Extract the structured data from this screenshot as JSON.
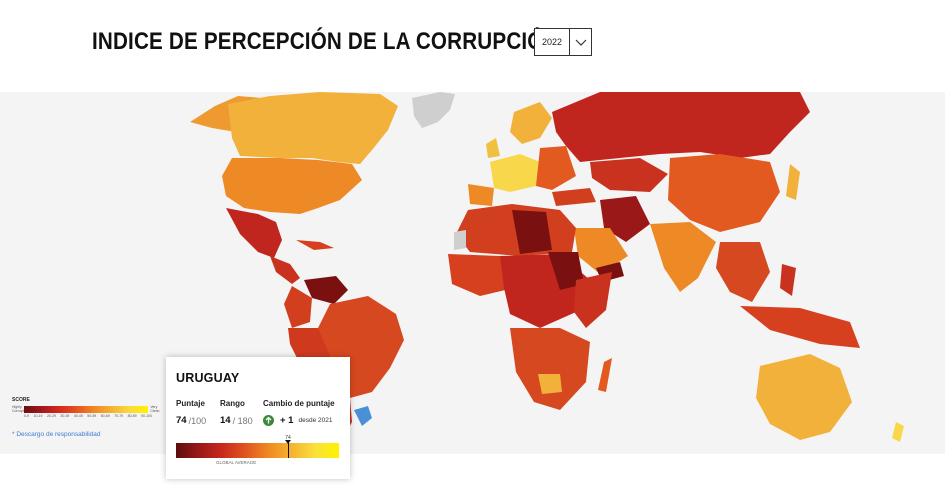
{
  "header": {
    "title": "INDICE DE PERCEPCIÓN DE LA CORRUPCIÓN",
    "year_selected": "2022"
  },
  "icons": {
    "year_dropdown": "chevron-down-icon",
    "change": "arrow-up-circle-icon"
  },
  "legend": {
    "title": "SCORE",
    "left_label_1": "Highly",
    "left_label_2": "Corrupt",
    "right_label_1": "Very",
    "right_label_2": "Clean",
    "ticks": [
      "0-9",
      "10-19",
      "20-29",
      "30-39",
      "40-49",
      "50-59",
      "60-69",
      "70-79",
      "80-89",
      "90-100"
    ]
  },
  "disclaimer": "* Descargo de responsabilidad",
  "country_card": {
    "country": "URUGUAY",
    "score_label": "Puntaje",
    "score": "74",
    "score_max": "/100",
    "rank_label": "Rango",
    "rank": "14",
    "rank_total": "/ 180",
    "change_label": "Cambio de puntaje",
    "change_value": "+ 1",
    "change_since": "desde 2021",
    "marker_value": "74",
    "bar_label": "GLOBAL AVERAGE"
  },
  "colors": {
    "very_corrupt": "#7a1010",
    "corrupt": "#c0261d",
    "medium": "#e25a20",
    "moderate": "#ee8a26",
    "clean": "#f2b13a",
    "very_clean": "#f8d84a",
    "selected": "#4a90d9",
    "no_data": "#cfcfcf",
    "ocean": "#f4f4f5"
  }
}
